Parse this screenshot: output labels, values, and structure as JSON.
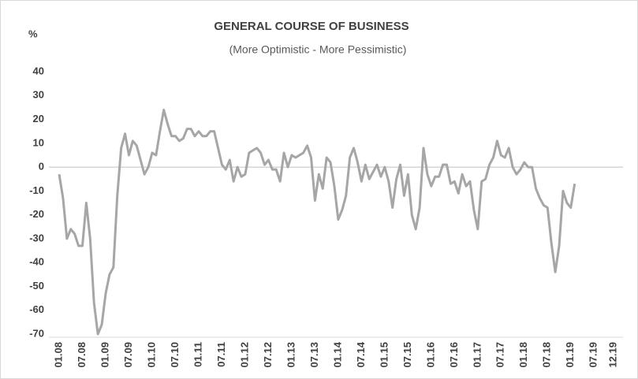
{
  "chart_data": {
    "type": "line",
    "title": "GENERAL COURSE OF BUSINESS",
    "subtitle": "(More Optimistic - More Pessimistic)",
    "y_label": "%",
    "categories": [
      "01.08",
      null,
      null,
      null,
      null,
      null,
      "07.08",
      null,
      null,
      null,
      null,
      null,
      "01.09",
      null,
      null,
      null,
      null,
      null,
      "07.09",
      null,
      null,
      null,
      null,
      null,
      "01.10",
      null,
      null,
      null,
      null,
      null,
      "07.10",
      null,
      null,
      null,
      null,
      null,
      "01.11",
      null,
      null,
      null,
      null,
      null,
      "07.11",
      null,
      null,
      null,
      null,
      null,
      "01.12",
      null,
      null,
      null,
      null,
      null,
      "07.12",
      null,
      null,
      null,
      null,
      null,
      "01.13",
      null,
      null,
      null,
      null,
      null,
      "07.13",
      null,
      null,
      null,
      null,
      null,
      "01.14",
      null,
      null,
      null,
      null,
      null,
      "07.14",
      null,
      null,
      null,
      null,
      null,
      "01.15",
      null,
      null,
      null,
      null,
      null,
      "07.15",
      null,
      null,
      null,
      null,
      null,
      "01.16",
      null,
      null,
      null,
      null,
      null,
      "07.16",
      null,
      null,
      null,
      null,
      null,
      "01.17",
      null,
      null,
      null,
      null,
      null,
      "07.17",
      null,
      null,
      null,
      null,
      null,
      "01.18",
      null,
      null,
      null,
      null,
      null,
      "07.18",
      null,
      null,
      null,
      null,
      null,
      "01.19",
      null,
      null,
      null,
      null,
      null,
      "07.19",
      null,
      null,
      null,
      null,
      "12.19"
    ],
    "values": [
      -3,
      -13,
      -30,
      -26,
      -28,
      -33,
      -33,
      -15,
      -30,
      -57,
      -70,
      -66,
      -53,
      -45,
      -42,
      -12,
      8,
      14,
      5,
      11,
      9,
      3,
      -3,
      0,
      6,
      5,
      15,
      24,
      18,
      13,
      13,
      11,
      12,
      16,
      16,
      13,
      15,
      13,
      13,
      15,
      15,
      8,
      1,
      -1,
      3,
      -6,
      0,
      -4,
      -3,
      6,
      7,
      8,
      6,
      1,
      3,
      -1,
      -1,
      -6,
      6,
      0,
      5,
      4,
      5,
      6,
      9,
      4,
      -14,
      -3,
      -9,
      4,
      2,
      -8,
      -22,
      -18,
      -12,
      4,
      8,
      2,
      -6,
      1,
      -5,
      -2,
      1,
      -4,
      0,
      -6,
      -17,
      -5,
      1,
      -12,
      -3,
      -20,
      -26,
      -17,
      8,
      -3,
      -8,
      -4,
      -4,
      1,
      1,
      -7,
      -6,
      -11,
      -3,
      -8,
      -6,
      -18,
      -26,
      -6,
      -5,
      1,
      4,
      11,
      5,
      4,
      8,
      0,
      -3,
      -1,
      2,
      0,
      0,
      -9,
      -13,
      -16,
      -17,
      -32,
      -44,
      -33,
      -10,
      -15,
      -17,
      -7,
      null,
      null,
      null,
      null,
      null,
      null,
      null,
      null,
      null,
      null
    ],
    "color": "#a6a6a6",
    "ylim": [
      -70,
      40
    ],
    "yticks": [
      40,
      30,
      20,
      10,
      0,
      -10,
      -20,
      -30,
      -40,
      -50,
      -60,
      -70
    ],
    "grid": false
  }
}
